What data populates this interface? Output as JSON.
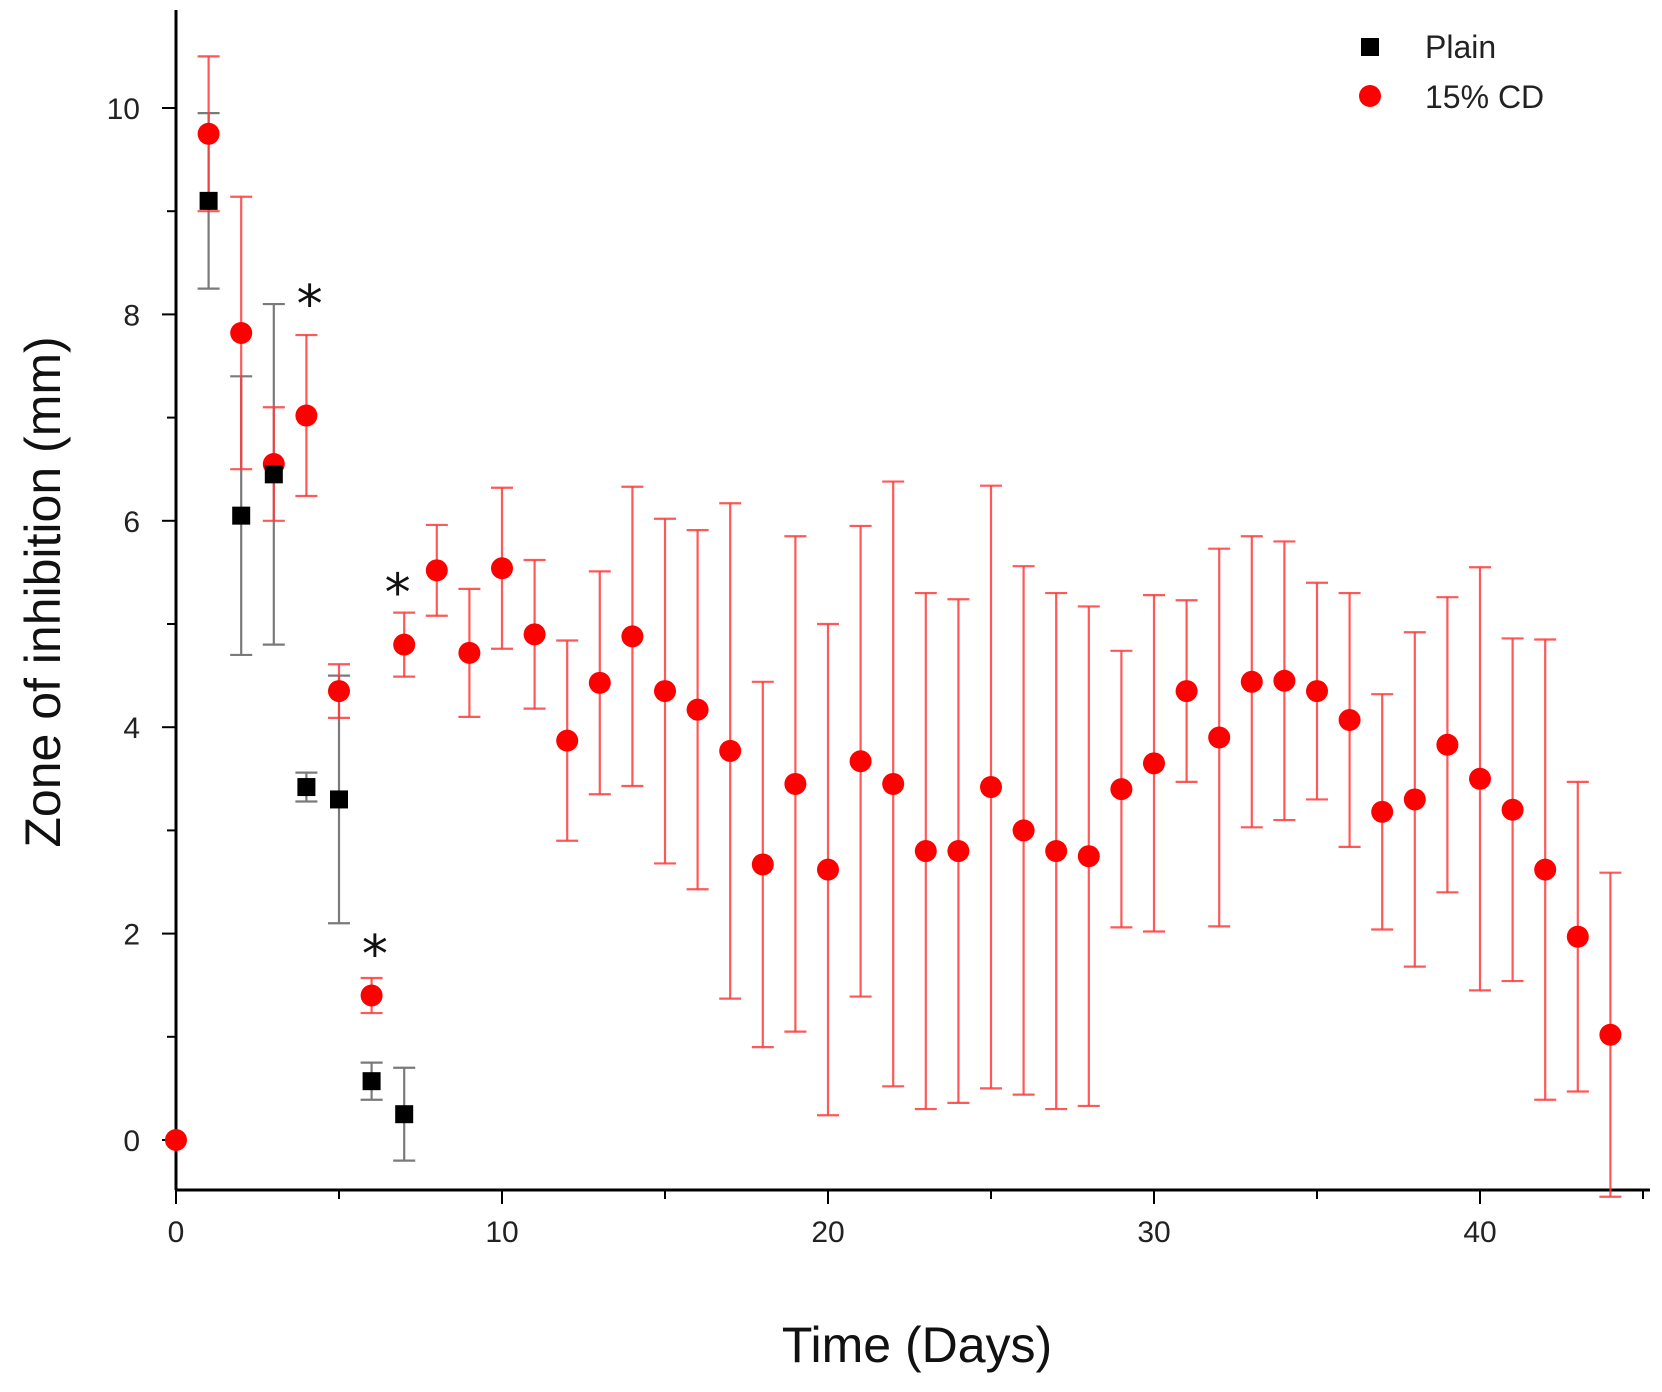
{
  "chart_data": {
    "type": "scatter",
    "title": "",
    "xlabel": "Time (Days)",
    "ylabel": "Zone of inhibition (mm)",
    "xlim": [
      0,
      45
    ],
    "ylim": [
      -0.5,
      11
    ],
    "x_ticks": [
      0,
      10,
      20,
      30,
      40
    ],
    "y_ticks": [
      0,
      2,
      4,
      6,
      8,
      10
    ],
    "x_tick_labels": [
      "0",
      "10",
      "20",
      "30",
      "40"
    ],
    "y_tick_labels": [
      "0",
      "2",
      "4",
      "6",
      "8",
      "10"
    ],
    "grid": false,
    "legend_position": "top-right",
    "series": [
      {
        "name": "Plain",
        "marker": "square",
        "color": "#000000",
        "errbar_color": "#7a7a7a",
        "x": [
          1,
          2,
          3,
          4,
          5,
          6,
          7
        ],
        "y": [
          9.1,
          6.05,
          6.45,
          3.42,
          3.3,
          0.57,
          0.25
        ],
        "err": [
          0.85,
          1.35,
          1.65,
          0.14,
          1.2,
          0.18,
          0.45
        ]
      },
      {
        "name": "15% CD",
        "marker": "circle",
        "color": "#ff0000",
        "errbar_color": "#ff3b3b",
        "x": [
          0,
          1,
          2,
          3,
          4,
          5,
          6,
          7,
          8,
          9,
          10,
          11,
          12,
          13,
          14,
          15,
          16,
          17,
          18,
          19,
          20,
          21,
          22,
          23,
          24,
          25,
          26,
          27,
          28,
          29,
          30,
          31,
          32,
          33,
          34,
          35,
          36,
          37,
          38,
          39,
          40,
          41,
          42,
          43,
          44
        ],
        "y": [
          0,
          9.75,
          7.82,
          6.55,
          7.02,
          4.35,
          1.4,
          4.8,
          5.52,
          4.72,
          5.54,
          4.9,
          3.87,
          4.43,
          4.88,
          4.35,
          4.17,
          3.77,
          2.67,
          3.45,
          2.62,
          3.67,
          3.45,
          2.8,
          2.8,
          3.42,
          3.0,
          2.8,
          2.75,
          3.4,
          3.65,
          4.35,
          3.9,
          4.44,
          4.45,
          4.35,
          4.07,
          3.18,
          3.3,
          3.83,
          3.5,
          3.2,
          2.62,
          1.97,
          1.02
        ],
        "err": [
          0,
          0.75,
          1.32,
          0.55,
          0.78,
          0.26,
          0.17,
          0.31,
          0.44,
          0.62,
          0.78,
          0.72,
          0.97,
          1.08,
          1.45,
          1.67,
          1.74,
          2.4,
          1.77,
          2.4,
          2.38,
          2.28,
          2.93,
          2.5,
          2.44,
          2.92,
          2.56,
          2.5,
          2.42,
          1.34,
          1.63,
          0.88,
          1.83,
          1.41,
          1.35,
          1.05,
          1.23,
          1.14,
          1.62,
          1.43,
          2.05,
          1.66,
          2.23,
          1.5,
          1.57
        ]
      }
    ],
    "annotations": [
      {
        "text": "*",
        "x": 4.1,
        "y": 8.2
      },
      {
        "text": "*",
        "x": 6.8,
        "y": 5.4
      },
      {
        "text": "*",
        "x": 6.1,
        "y": 1.9
      }
    ]
  }
}
